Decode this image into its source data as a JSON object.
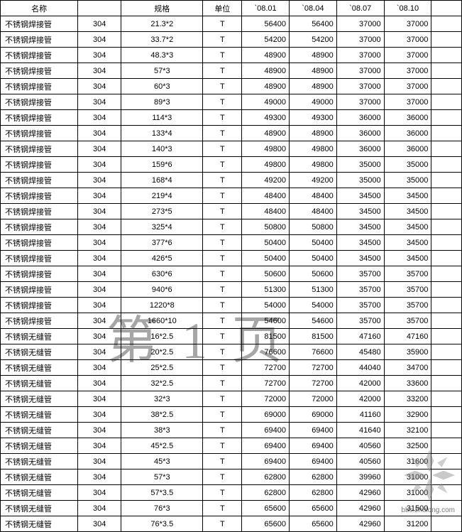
{
  "table": {
    "columns": [
      "名称",
      "",
      "规格",
      "单位",
      "`08.01",
      "`08.04",
      "`08.07",
      "`08.10",
      ""
    ],
    "rows": [
      [
        "不锈钢焊接管",
        "304",
        "21.3*2",
        "T",
        "56400",
        "56400",
        "37000",
        "37000",
        ""
      ],
      [
        "不锈钢焊接管",
        "304",
        "33.7*2",
        "T",
        "54200",
        "54200",
        "37000",
        "37000",
        ""
      ],
      [
        "不锈钢焊接管",
        "304",
        "48.3*3",
        "T",
        "48900",
        "48900",
        "37000",
        "37000",
        ""
      ],
      [
        "不锈钢焊接管",
        "304",
        "57*3",
        "T",
        "48900",
        "48900",
        "37000",
        "37000",
        ""
      ],
      [
        "不锈钢焊接管",
        "304",
        "60*3",
        "T",
        "48900",
        "48900",
        "37000",
        "37000",
        ""
      ],
      [
        "不锈钢焊接管",
        "304",
        "89*3",
        "T",
        "49000",
        "49000",
        "37000",
        "37000",
        ""
      ],
      [
        "不锈钢焊接管",
        "304",
        "114*3",
        "T",
        "49300",
        "49300",
        "36000",
        "36000",
        ""
      ],
      [
        "不锈钢焊接管",
        "304",
        "133*4",
        "T",
        "48900",
        "48900",
        "36000",
        "36000",
        ""
      ],
      [
        "不锈钢焊接管",
        "304",
        "140*3",
        "T",
        "49800",
        "49800",
        "36000",
        "36000",
        ""
      ],
      [
        "不锈钢焊接管",
        "304",
        "159*6",
        "T",
        "49800",
        "49800",
        "35000",
        "35000",
        ""
      ],
      [
        "不锈钢焊接管",
        "304",
        "168*4",
        "T",
        "49200",
        "49200",
        "35000",
        "35000",
        ""
      ],
      [
        "不锈钢焊接管",
        "304",
        "219*4",
        "T",
        "48400",
        "48400",
        "34500",
        "34500",
        ""
      ],
      [
        "不锈钢焊接管",
        "304",
        "273*5",
        "T",
        "48400",
        "48400",
        "34500",
        "34500",
        ""
      ],
      [
        "不锈钢焊接管",
        "304",
        "325*4",
        "T",
        "50800",
        "50800",
        "34500",
        "34500",
        ""
      ],
      [
        "不锈钢焊接管",
        "304",
        "377*6",
        "T",
        "50400",
        "50400",
        "34500",
        "34500",
        ""
      ],
      [
        "不锈钢焊接管",
        "304",
        "426*5",
        "T",
        "50400",
        "50400",
        "34500",
        "34500",
        ""
      ],
      [
        "不锈钢焊接管",
        "304",
        "630*6",
        "T",
        "50600",
        "50600",
        "35700",
        "35700",
        ""
      ],
      [
        "不锈钢焊接管",
        "304",
        "940*6",
        "T",
        "51300",
        "51300",
        "35700",
        "35700",
        ""
      ],
      [
        "不锈钢焊接管",
        "304",
        "1220*8",
        "T",
        "54000",
        "54000",
        "35700",
        "35700",
        ""
      ],
      [
        "不锈钢焊接管",
        "304",
        "1660*10",
        "T",
        "54600",
        "54600",
        "35700",
        "35700",
        ""
      ],
      [
        "不锈钢无缝管",
        "304",
        "16*2.5",
        "T",
        "81500",
        "81500",
        "47160",
        "47160",
        ""
      ],
      [
        "不锈钢无缝管",
        "304",
        "20*2.5",
        "T",
        "76600",
        "76600",
        "45480",
        "35900",
        ""
      ],
      [
        "不锈钢无缝管",
        "304",
        "25*2.5",
        "T",
        "72700",
        "72700",
        "44040",
        "34700",
        ""
      ],
      [
        "不锈钢无缝管",
        "304",
        "32*2.5",
        "T",
        "72700",
        "72700",
        "42000",
        "33600",
        ""
      ],
      [
        "不锈钢无缝管",
        "304",
        "32*3",
        "T",
        "72000",
        "72000",
        "42000",
        "33200",
        ""
      ],
      [
        "不锈钢无缝管",
        "304",
        "38*2.5",
        "T",
        "69000",
        "69000",
        "41160",
        "32900",
        ""
      ],
      [
        "不锈钢无缝管",
        "304",
        "38*3",
        "T",
        "69400",
        "69400",
        "41640",
        "32100",
        ""
      ],
      [
        "不锈钢无缝管",
        "304",
        "45*2.5",
        "T",
        "69400",
        "69400",
        "40560",
        "32500",
        ""
      ],
      [
        "不锈钢无缝管",
        "304",
        "45*3",
        "T",
        "69400",
        "69400",
        "40560",
        "31600",
        ""
      ],
      [
        "不锈钢无缝管",
        "304",
        "57*3",
        "T",
        "62800",
        "62800",
        "39960",
        "31000",
        ""
      ],
      [
        "不锈钢无缝管",
        "304",
        "57*3.5",
        "T",
        "62800",
        "62800",
        "42960",
        "31000",
        ""
      ],
      [
        "不锈钢无缝管",
        "304",
        "76*3",
        "T",
        "65600",
        "65600",
        "42960",
        "31500",
        ""
      ],
      [
        "不锈钢无缝管",
        "304",
        "76*3.5",
        "T",
        "65600",
        "65600",
        "42960",
        "31200",
        ""
      ]
    ]
  },
  "watermark": {
    "text": "第 1 页",
    "url": "bbs.zhulong.com"
  },
  "styles": {
    "background_color": "#ffffff",
    "border_color": "#000000",
    "text_color": "#000000",
    "font_size": 11,
    "watermark_color": "rgba(0,0,0,0.35)",
    "watermark_fontsize": 72
  }
}
